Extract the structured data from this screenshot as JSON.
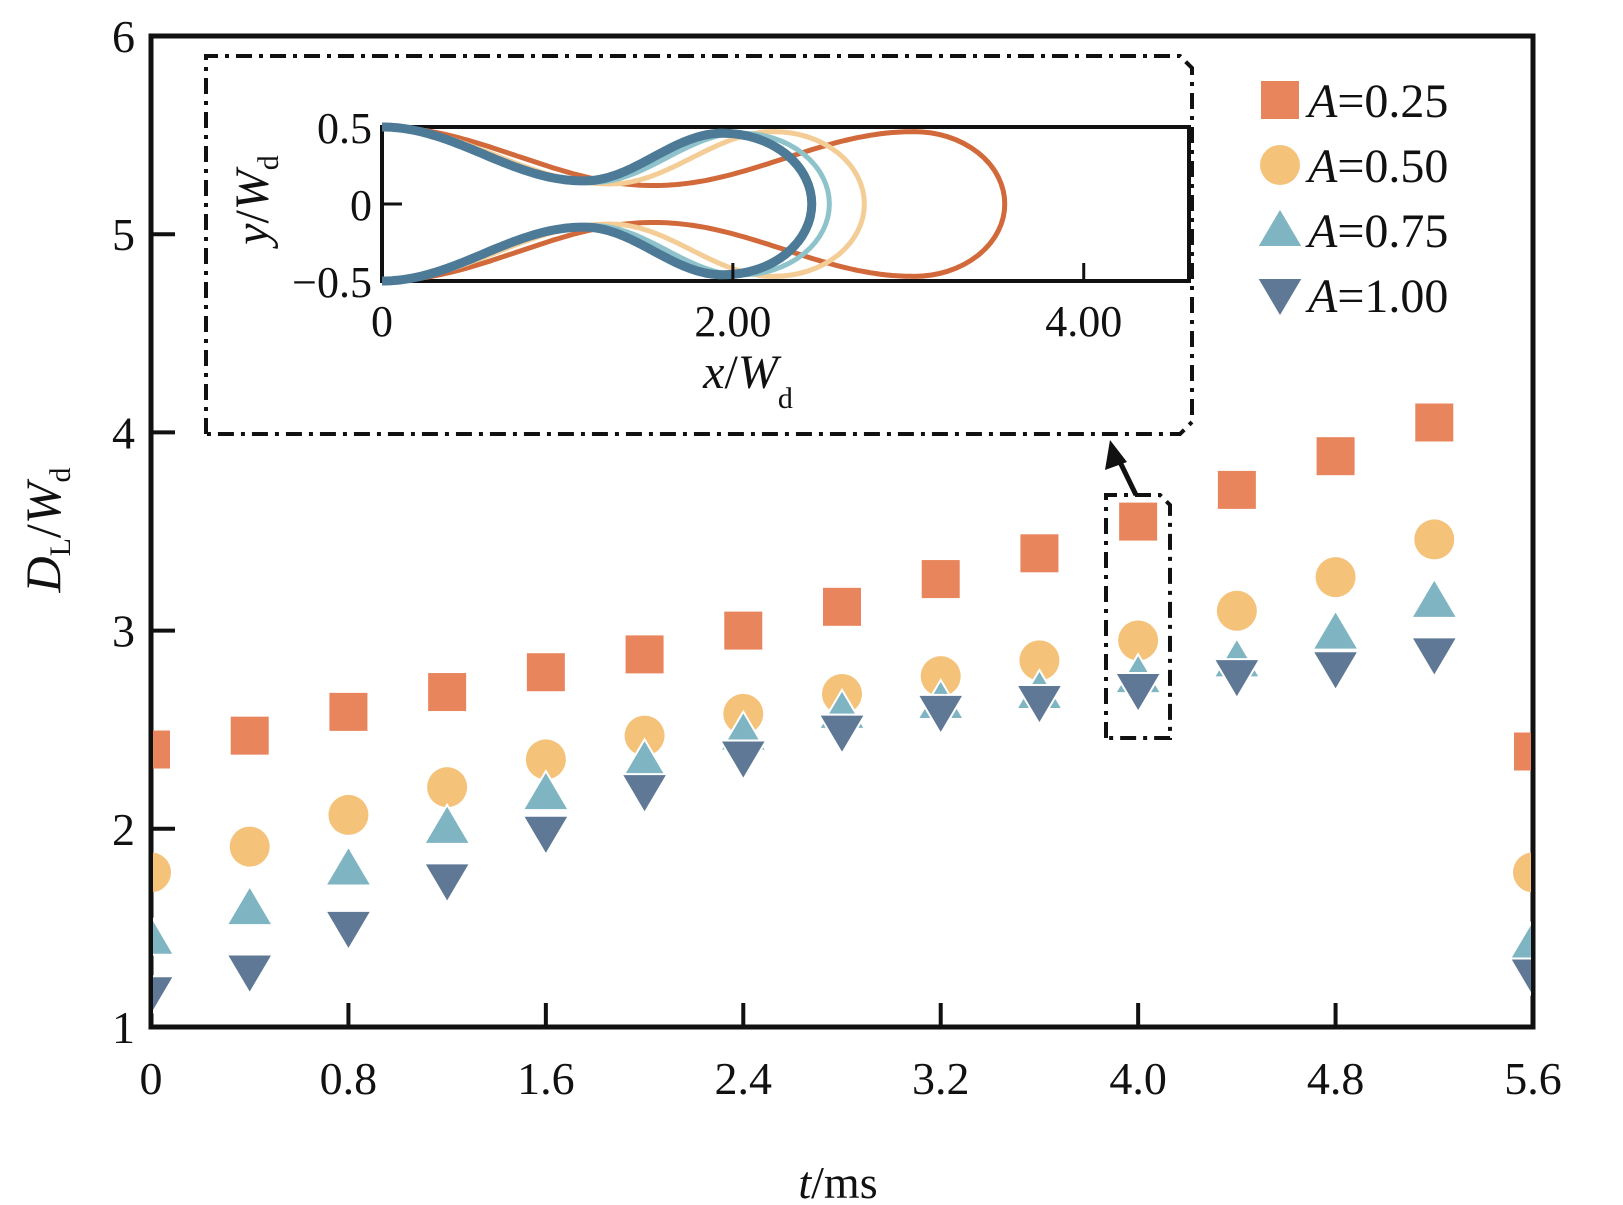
{
  "chart_data": {
    "type": "scatter",
    "title": "",
    "xlabel": {
      "var": "t",
      "unit": "/ms"
    },
    "ylabel": {
      "var": "D",
      "sub": "L",
      "slash": "/",
      "var2": "W",
      "sub2": "d"
    },
    "xlim": [
      0,
      5.6
    ],
    "ylim": [
      1,
      6
    ],
    "xticks": [
      0,
      0.8,
      1.6,
      2.4,
      3.2,
      4.0,
      4.8,
      5.6
    ],
    "xtick_labels": [
      "0",
      "0.8",
      "1.6",
      "2.4",
      "3.2",
      "4.0",
      "4.8",
      "5.6"
    ],
    "yticks": [
      1,
      2,
      3,
      4,
      5,
      6
    ],
    "ytick_labels": [
      "1",
      "2",
      "3",
      "4",
      "5",
      "6"
    ],
    "grid": false,
    "legend_position": "top-right",
    "x": [
      0,
      0.4,
      0.8,
      1.2,
      1.6,
      2.0,
      2.4,
      2.8,
      3.2,
      3.6,
      4.0,
      4.4,
      4.8,
      5.2,
      5.6
    ],
    "series": [
      {
        "name": "A=0.25",
        "label_var": "A",
        "label_val": "=0.25",
        "marker": "square",
        "color": "#E8855C",
        "values": [
          2.4,
          2.47,
          2.59,
          2.69,
          2.79,
          2.88,
          3.0,
          3.12,
          3.26,
          3.39,
          3.55,
          3.71,
          3.88,
          4.05,
          2.39
        ]
      },
      {
        "name": "A=0.50",
        "label_var": "A",
        "label_val": "=0.50",
        "marker": "circle",
        "color": "#F5C27A",
        "values": [
          1.78,
          1.91,
          2.07,
          2.21,
          2.35,
          2.47,
          2.58,
          2.68,
          2.77,
          2.85,
          2.95,
          3.1,
          3.27,
          3.46,
          1.78
        ]
      },
      {
        "name": "A=0.75",
        "label_var": "A",
        "label_val": "=0.75",
        "marker": "triangle-up",
        "color": "#7FB5C2",
        "values": [
          1.45,
          1.6,
          1.8,
          2.01,
          2.18,
          2.34,
          2.48,
          2.59,
          2.64,
          2.69,
          2.77,
          2.85,
          2.99,
          3.15,
          1.43
        ]
      },
      {
        "name": "A=1.00",
        "label_var": "A",
        "label_val": "=1.00",
        "marker": "triangle-down",
        "color": "#5F7896",
        "values": [
          1.17,
          1.28,
          1.5,
          1.74,
          1.98,
          2.19,
          2.36,
          2.49,
          2.59,
          2.64,
          2.7,
          2.77,
          2.81,
          2.88,
          1.26
        ]
      }
    ],
    "annotations": [
      {
        "type": "highlight-box",
        "target_x": 4.0,
        "description": "dash-dot box around t=4.0 ms points, arrow pointing to inset"
      }
    ],
    "inset": {
      "type": "line",
      "description": "Droplet interface shapes at t=4.0 ms for each A",
      "xlabel": {
        "var": "x",
        "slash": "/",
        "var2": "W",
        "sub2": "d"
      },
      "ylabel": {
        "var": "y",
        "slash": "/",
        "var2": "W",
        "sub2": "d"
      },
      "xlim": [
        0,
        4.6
      ],
      "ylim": [
        -0.5,
        0.5
      ],
      "xticks": [
        0,
        2.0,
        4.0
      ],
      "xtick_labels": [
        "0",
        "2.00",
        "4.00"
      ],
      "yticks": [
        0.5,
        0,
        -0.5
      ],
      "ytick_labels": [
        "0.5",
        "0",
        "−0.5"
      ],
      "series": [
        {
          "name": "A=0.25",
          "color": "#D2693A",
          "neck_x": 1.55,
          "neck_half_width": 0.12,
          "tip_x": 3.55,
          "head_half_width": 0.47
        },
        {
          "name": "A=0.50",
          "color": "#F3CD95",
          "neck_x": 1.3,
          "neck_half_width": 0.13,
          "tip_x": 2.75,
          "head_half_width": 0.47
        },
        {
          "name": "A=0.75",
          "color": "#8EC3CB",
          "neck_x": 1.2,
          "neck_half_width": 0.14,
          "tip_x": 2.55,
          "head_half_width": 0.46
        },
        {
          "name": "A=1.00",
          "color": "#4D7A96",
          "neck_x": 1.15,
          "neck_half_width": 0.15,
          "tip_x": 2.45,
          "head_half_width": 0.46
        }
      ]
    }
  }
}
